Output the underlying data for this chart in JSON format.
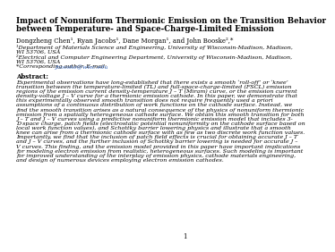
{
  "title_line1": "Impact of Nonuniform Thermionic Emission on the Transition Behavior",
  "title_line2": "between Temperature- and Space-Charge-Limited Emission",
  "authors": "Dongzheng Chen¹, Ryan Jacobs¹, Dane Morgan¹, and John Booske²,*",
  "affil1_line1": "¹Department of Materials Science and Engineering, University of Wisconsin-Madison, Madison,",
  "affil1_line2": "WI 53706, USA",
  "affil2_line1": "²Electrical and Computer Engineering Department, University of Wisconsin-Madison, Madison,",
  "affil2_line2": "WI 53706, USA",
  "corresponding_prefix": "*Corresponding author. E-mail: ",
  "email": "jbooske@wisc.edu",
  "abstract_label": "Abstract:",
  "abstract_lines": [
    "Experimental observations have long-established that there exists a smooth ‘roll-off’ or ‘knee’",
    "transition between the temperature-limited (TL) and full-space-charge-limited (FSCL) emission",
    "regions of the emission current density-temperature J – T (Miram) curve, or the emission current",
    "density-voltage J – V curve for a thermionic emission cathode. In this paper, we demonstrate that",
    "this experimentally observed smooth transition does not require frequently used a priori",
    "assumptions of a continuous distribution of work functions on the cathode surface. Instead, we",
    "find the smooth transition arises as a natural consequence of the physics of nonuniform thermionic",
    "emission from a spatially heterogeneous cathode surface. We obtain this smooth transition for both",
    "J – T and J – V curves using a predictive nonuniform thermionic emission model that includes 3-",
    "D space charge, patch fields (electrostatic potential nonuniformity on the cathode surface based on",
    "local work function values), and Schottky barrier lowering physics and illustrate that a smooth",
    "knee can arise from a thermionic cathode surface with as few as two discrete work function values.",
    "Importantly, we find that the inclusion of patch field effects is crucial for obtaining accurate J – T",
    "and J – V curves, and the further inclusion of Schottky barrier lowering is needed for accurate J –",
    "V curves. This finding, and the emission model provided in this paper have important implications",
    "for modeling electron emission from realistic, heterogeneous surfaces. Such modeling is important",
    "for improved understanding of the interplay of emission physics, cathode materials engineering,",
    "and design of numerous devices employing electron emission cathodes."
  ],
  "page_number": "1",
  "bg_color": "#ffffff",
  "text_color": "#000000",
  "link_color": "#4472c4",
  "title_fontsize": 6.2,
  "author_fontsize": 5.0,
  "affil_fontsize": 4.6,
  "abstract_label_fontsize": 5.0,
  "abstract_fontsize": 4.6
}
